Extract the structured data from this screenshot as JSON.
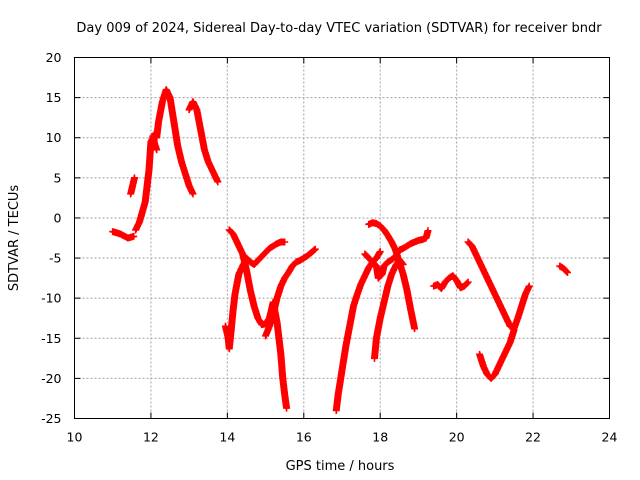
{
  "chart_data": {
    "type": "scatter",
    "title": "Day 009 of 2024, Sidereal Day-to-day VTEC variation (SDTVAR) for receiver bndr",
    "xlabel": "GPS time / hours",
    "ylabel": "SDTVAR / TECUs",
    "xlim": [
      10,
      24
    ],
    "ylim": [
      -25,
      20
    ],
    "xticks": [
      10,
      12,
      14,
      16,
      18,
      20,
      22,
      24
    ],
    "yticks": [
      -25,
      -20,
      -15,
      -10,
      -5,
      0,
      5,
      10,
      15,
      20
    ],
    "grid": true,
    "marker": "plus",
    "color": "#ff0000",
    "segments": [
      [
        [
          11.0,
          -1.7
        ],
        [
          11.2,
          -2.0
        ],
        [
          11.4,
          -2.5
        ],
        [
          11.55,
          -2.3
        ]
      ],
      [
        [
          11.47,
          3.0
        ],
        [
          11.52,
          4.0
        ],
        [
          11.57,
          5.0
        ]
      ],
      [
        [
          11.6,
          -1.5
        ],
        [
          11.7,
          -0.5
        ],
        [
          11.85,
          2.0
        ],
        [
          11.95,
          6.0
        ],
        [
          12.0,
          9.5
        ],
        [
          12.1,
          10.5
        ],
        [
          12.15,
          10.0
        ],
        [
          12.2,
          12.0
        ],
        [
          12.3,
          14.5
        ],
        [
          12.4,
          16.0
        ],
        [
          12.5,
          15.0
        ],
        [
          12.6,
          12.0
        ],
        [
          12.7,
          9.0
        ],
        [
          12.8,
          7.0
        ],
        [
          12.9,
          5.5
        ],
        [
          13.0,
          4.0
        ],
        [
          13.1,
          3.0
        ]
      ],
      [
        [
          12.05,
          10.2
        ],
        [
          12.1,
          9.2
        ],
        [
          12.15,
          8.5
        ]
      ],
      [
        [
          13.0,
          13.5
        ],
        [
          13.1,
          14.5
        ],
        [
          13.2,
          13.5
        ],
        [
          13.3,
          11.0
        ],
        [
          13.4,
          8.5
        ],
        [
          13.5,
          7.0
        ],
        [
          13.6,
          6.0
        ],
        [
          13.7,
          5.0
        ],
        [
          13.75,
          4.5
        ]
      ],
      [
        [
          14.0,
          -14.0
        ],
        [
          14.05,
          -16.3
        ],
        [
          14.1,
          -14.0
        ],
        [
          14.15,
          -11.5
        ],
        [
          14.2,
          -9.5
        ],
        [
          14.3,
          -7.0
        ],
        [
          14.4,
          -6.0
        ],
        [
          14.5,
          -5.0
        ],
        [
          14.6,
          -5.5
        ],
        [
          14.7,
          -5.8
        ],
        [
          14.8,
          -5.3
        ],
        [
          14.9,
          -4.8
        ],
        [
          15.0,
          -4.3
        ],
        [
          15.1,
          -3.8
        ],
        [
          15.2,
          -3.5
        ],
        [
          15.3,
          -3.2
        ],
        [
          15.4,
          -3.0
        ],
        [
          15.5,
          -3.0
        ]
      ],
      [
        [
          13.95,
          -13.5
        ],
        [
          14.0,
          -14.5
        ],
        [
          14.05,
          -15.5
        ]
      ],
      [
        [
          14.05,
          -1.5
        ],
        [
          14.15,
          -2.0
        ],
        [
          14.25,
          -3.0
        ],
        [
          14.4,
          -4.5
        ],
        [
          14.5,
          -6.5
        ],
        [
          14.6,
          -9.0
        ],
        [
          14.7,
          -11.0
        ],
        [
          14.8,
          -12.5
        ],
        [
          14.9,
          -13.3
        ],
        [
          15.0,
          -13.2
        ],
        [
          15.1,
          -12.5
        ],
        [
          15.2,
          -10.5
        ],
        [
          15.3,
          -13.0
        ],
        [
          15.4,
          -17.0
        ],
        [
          15.45,
          -20.0
        ],
        [
          15.5,
          -22.0
        ],
        [
          15.55,
          -23.7
        ]
      ],
      [
        [
          15.0,
          -14.7
        ],
        [
          15.1,
          -13.5
        ],
        [
          15.2,
          -12.0
        ],
        [
          15.3,
          -10.0
        ],
        [
          15.4,
          -8.5
        ],
        [
          15.5,
          -7.5
        ],
        [
          15.6,
          -6.8
        ],
        [
          15.7,
          -6.0
        ],
        [
          15.8,
          -5.5
        ],
        [
          15.9,
          -5.3
        ],
        [
          16.0,
          -5.0
        ],
        [
          16.1,
          -4.7
        ],
        [
          16.2,
          -4.3
        ],
        [
          16.3,
          -3.9
        ]
      ],
      [
        [
          16.85,
          -24.0
        ],
        [
          16.9,
          -22.0
        ],
        [
          17.0,
          -19.0
        ],
        [
          17.1,
          -16.0
        ],
        [
          17.2,
          -13.5
        ],
        [
          17.3,
          -11.0
        ],
        [
          17.4,
          -9.5
        ],
        [
          17.5,
          -8.2
        ],
        [
          17.6,
          -7.2
        ],
        [
          17.7,
          -6.2
        ],
        [
          17.8,
          -5.5
        ],
        [
          17.9,
          -5.0
        ],
        [
          18.0,
          -4.2
        ]
      ],
      [
        [
          17.7,
          -0.8
        ],
        [
          17.8,
          -0.6
        ],
        [
          17.9,
          -0.7
        ],
        [
          18.0,
          -1.0
        ],
        [
          18.1,
          -1.5
        ],
        [
          18.2,
          -2.2
        ],
        [
          18.3,
          -3.0
        ],
        [
          18.4,
          -4.0
        ],
        [
          18.5,
          -5.5
        ],
        [
          18.6,
          -7.0
        ],
        [
          18.7,
          -9.0
        ],
        [
          18.8,
          -11.5
        ],
        [
          18.9,
          -13.8
        ]
      ],
      [
        [
          17.6,
          -4.5
        ],
        [
          17.7,
          -5.0
        ],
        [
          17.8,
          -5.5
        ],
        [
          17.9,
          -6.0
        ],
        [
          17.95,
          -7.5
        ],
        [
          18.05,
          -7.0
        ],
        [
          18.1,
          -6.0
        ],
        [
          18.2,
          -5.5
        ],
        [
          18.3,
          -5.2
        ],
        [
          18.4,
          -4.8
        ],
        [
          18.5,
          -4.0
        ],
        [
          18.6,
          -3.8
        ],
        [
          18.7,
          -3.5
        ],
        [
          18.8,
          -3.2
        ],
        [
          18.9,
          -3.0
        ],
        [
          19.0,
          -2.8
        ],
        [
          19.1,
          -2.7
        ],
        [
          19.2,
          -2.5
        ],
        [
          19.25,
          -1.6
        ]
      ],
      [
        [
          17.85,
          -17.5
        ],
        [
          17.9,
          -15.0
        ],
        [
          18.0,
          -12.5
        ],
        [
          18.1,
          -10.5
        ],
        [
          18.2,
          -8.5
        ],
        [
          18.3,
          -7.0
        ],
        [
          18.4,
          -6.0
        ],
        [
          18.5,
          -5.2
        ],
        [
          18.6,
          -5.8
        ]
      ],
      [
        [
          19.4,
          -8.5
        ],
        [
          19.5,
          -8.3
        ],
        [
          19.6,
          -8.8
        ],
        [
          19.7,
          -8.0
        ],
        [
          19.8,
          -7.5
        ],
        [
          19.9,
          -7.2
        ],
        [
          20.0,
          -7.8
        ],
        [
          20.1,
          -8.7
        ],
        [
          20.2,
          -8.5
        ],
        [
          20.3,
          -8.0
        ]
      ],
      [
        [
          20.3,
          -3.0
        ],
        [
          20.4,
          -3.5
        ],
        [
          20.5,
          -4.5
        ],
        [
          20.6,
          -5.5
        ],
        [
          20.7,
          -6.5
        ],
        [
          20.8,
          -7.5
        ],
        [
          20.9,
          -8.5
        ],
        [
          21.0,
          -9.5
        ],
        [
          21.1,
          -10.5
        ],
        [
          21.2,
          -11.5
        ],
        [
          21.3,
          -12.5
        ],
        [
          21.4,
          -13.5
        ],
        [
          21.5,
          -13.8
        ],
        [
          21.6,
          -12.5
        ],
        [
          21.7,
          -11.0
        ],
        [
          21.8,
          -9.5
        ],
        [
          21.9,
          -8.5
        ]
      ],
      [
        [
          20.6,
          -17.0
        ],
        [
          20.7,
          -18.5
        ],
        [
          20.8,
          -19.5
        ],
        [
          20.9,
          -20.0
        ],
        [
          21.0,
          -19.5
        ],
        [
          21.1,
          -18.5
        ],
        [
          21.2,
          -17.5
        ],
        [
          21.3,
          -16.5
        ],
        [
          21.4,
          -15.5
        ],
        [
          21.5,
          -14.0
        ]
      ],
      [
        [
          22.7,
          -6.0
        ],
        [
          22.8,
          -6.3
        ],
        [
          22.9,
          -6.8
        ]
      ]
    ]
  }
}
